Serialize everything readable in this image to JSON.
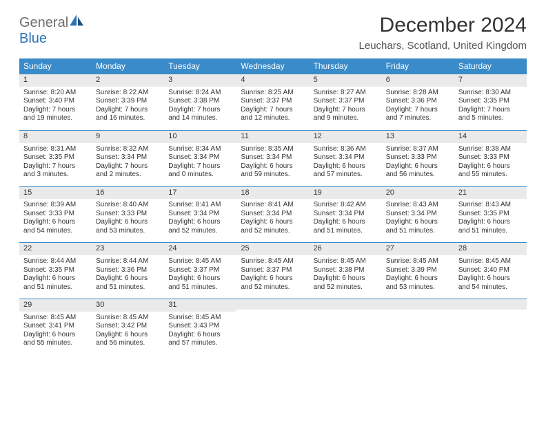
{
  "logo": {
    "word1": "General",
    "word2": "Blue",
    "color1": "#6d6d6d",
    "color2": "#2b73b6"
  },
  "title": "December 2024",
  "location": "Leuchars, Scotland, United Kingdom",
  "palette": {
    "header_bg": "#3a8bc9",
    "header_text": "#ffffff",
    "daynum_bg": "#eaeaea",
    "daynum_border": "#3a8bc9",
    "body_text": "#333333",
    "page_bg": "#ffffff"
  },
  "typography": {
    "title_fontsize": 30,
    "location_fontsize": 15,
    "th_fontsize": 12,
    "daynum_fontsize": 11,
    "cell_fontsize": 10
  },
  "weekdays": [
    "Sunday",
    "Monday",
    "Tuesday",
    "Wednesday",
    "Thursday",
    "Friday",
    "Saturday"
  ],
  "days": [
    {
      "n": "1",
      "sunrise": "Sunrise: 8:20 AM",
      "sunset": "Sunset: 3:40 PM",
      "daylight": "Daylight: 7 hours and 19 minutes."
    },
    {
      "n": "2",
      "sunrise": "Sunrise: 8:22 AM",
      "sunset": "Sunset: 3:39 PM",
      "daylight": "Daylight: 7 hours and 16 minutes."
    },
    {
      "n": "3",
      "sunrise": "Sunrise: 8:24 AM",
      "sunset": "Sunset: 3:38 PM",
      "daylight": "Daylight: 7 hours and 14 minutes."
    },
    {
      "n": "4",
      "sunrise": "Sunrise: 8:25 AM",
      "sunset": "Sunset: 3:37 PM",
      "daylight": "Daylight: 7 hours and 12 minutes."
    },
    {
      "n": "5",
      "sunrise": "Sunrise: 8:27 AM",
      "sunset": "Sunset: 3:37 PM",
      "daylight": "Daylight: 7 hours and 9 minutes."
    },
    {
      "n": "6",
      "sunrise": "Sunrise: 8:28 AM",
      "sunset": "Sunset: 3:36 PM",
      "daylight": "Daylight: 7 hours and 7 minutes."
    },
    {
      "n": "7",
      "sunrise": "Sunrise: 8:30 AM",
      "sunset": "Sunset: 3:35 PM",
      "daylight": "Daylight: 7 hours and 5 minutes."
    },
    {
      "n": "8",
      "sunrise": "Sunrise: 8:31 AM",
      "sunset": "Sunset: 3:35 PM",
      "daylight": "Daylight: 7 hours and 3 minutes."
    },
    {
      "n": "9",
      "sunrise": "Sunrise: 8:32 AM",
      "sunset": "Sunset: 3:34 PM",
      "daylight": "Daylight: 7 hours and 2 minutes."
    },
    {
      "n": "10",
      "sunrise": "Sunrise: 8:34 AM",
      "sunset": "Sunset: 3:34 PM",
      "daylight": "Daylight: 7 hours and 0 minutes."
    },
    {
      "n": "11",
      "sunrise": "Sunrise: 8:35 AM",
      "sunset": "Sunset: 3:34 PM",
      "daylight": "Daylight: 6 hours and 59 minutes."
    },
    {
      "n": "12",
      "sunrise": "Sunrise: 8:36 AM",
      "sunset": "Sunset: 3:34 PM",
      "daylight": "Daylight: 6 hours and 57 minutes."
    },
    {
      "n": "13",
      "sunrise": "Sunrise: 8:37 AM",
      "sunset": "Sunset: 3:33 PM",
      "daylight": "Daylight: 6 hours and 56 minutes."
    },
    {
      "n": "14",
      "sunrise": "Sunrise: 8:38 AM",
      "sunset": "Sunset: 3:33 PM",
      "daylight": "Daylight: 6 hours and 55 minutes."
    },
    {
      "n": "15",
      "sunrise": "Sunrise: 8:39 AM",
      "sunset": "Sunset: 3:33 PM",
      "daylight": "Daylight: 6 hours and 54 minutes."
    },
    {
      "n": "16",
      "sunrise": "Sunrise: 8:40 AM",
      "sunset": "Sunset: 3:33 PM",
      "daylight": "Daylight: 6 hours and 53 minutes."
    },
    {
      "n": "17",
      "sunrise": "Sunrise: 8:41 AM",
      "sunset": "Sunset: 3:34 PM",
      "daylight": "Daylight: 6 hours and 52 minutes."
    },
    {
      "n": "18",
      "sunrise": "Sunrise: 8:41 AM",
      "sunset": "Sunset: 3:34 PM",
      "daylight": "Daylight: 6 hours and 52 minutes."
    },
    {
      "n": "19",
      "sunrise": "Sunrise: 8:42 AM",
      "sunset": "Sunset: 3:34 PM",
      "daylight": "Daylight: 6 hours and 51 minutes."
    },
    {
      "n": "20",
      "sunrise": "Sunrise: 8:43 AM",
      "sunset": "Sunset: 3:34 PM",
      "daylight": "Daylight: 6 hours and 51 minutes."
    },
    {
      "n": "21",
      "sunrise": "Sunrise: 8:43 AM",
      "sunset": "Sunset: 3:35 PM",
      "daylight": "Daylight: 6 hours and 51 minutes."
    },
    {
      "n": "22",
      "sunrise": "Sunrise: 8:44 AM",
      "sunset": "Sunset: 3:35 PM",
      "daylight": "Daylight: 6 hours and 51 minutes."
    },
    {
      "n": "23",
      "sunrise": "Sunrise: 8:44 AM",
      "sunset": "Sunset: 3:36 PM",
      "daylight": "Daylight: 6 hours and 51 minutes."
    },
    {
      "n": "24",
      "sunrise": "Sunrise: 8:45 AM",
      "sunset": "Sunset: 3:37 PM",
      "daylight": "Daylight: 6 hours and 51 minutes."
    },
    {
      "n": "25",
      "sunrise": "Sunrise: 8:45 AM",
      "sunset": "Sunset: 3:37 PM",
      "daylight": "Daylight: 6 hours and 52 minutes."
    },
    {
      "n": "26",
      "sunrise": "Sunrise: 8:45 AM",
      "sunset": "Sunset: 3:38 PM",
      "daylight": "Daylight: 6 hours and 52 minutes."
    },
    {
      "n": "27",
      "sunrise": "Sunrise: 8:45 AM",
      "sunset": "Sunset: 3:39 PM",
      "daylight": "Daylight: 6 hours and 53 minutes."
    },
    {
      "n": "28",
      "sunrise": "Sunrise: 8:45 AM",
      "sunset": "Sunset: 3:40 PM",
      "daylight": "Daylight: 6 hours and 54 minutes."
    },
    {
      "n": "29",
      "sunrise": "Sunrise: 8:45 AM",
      "sunset": "Sunset: 3:41 PM",
      "daylight": "Daylight: 6 hours and 55 minutes."
    },
    {
      "n": "30",
      "sunrise": "Sunrise: 8:45 AM",
      "sunset": "Sunset: 3:42 PM",
      "daylight": "Daylight: 6 hours and 56 minutes."
    },
    {
      "n": "31",
      "sunrise": "Sunrise: 8:45 AM",
      "sunset": "Sunset: 3:43 PM",
      "daylight": "Daylight: 6 hours and 57 minutes."
    }
  ]
}
